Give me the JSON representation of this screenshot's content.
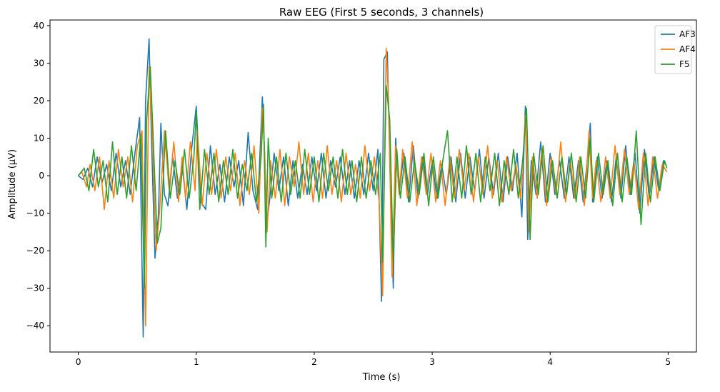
{
  "chart_data": {
    "type": "line",
    "title": "Raw EEG (First 5 seconds, 3 channels)",
    "xlabel": "Time (s)",
    "ylabel": "Amplitude (µV)",
    "xlim": [
      -0.24,
      5.24
    ],
    "ylim": [
      -47,
      41.5
    ],
    "xticks": [
      0,
      1,
      2,
      3,
      4,
      5
    ],
    "yticks": [
      -40,
      -30,
      -20,
      -10,
      0,
      10,
      20,
      30,
      40
    ],
    "grid": false,
    "legend_position": "top-right",
    "series": [
      {
        "name": "AF3",
        "color": "#1f77b4",
        "x": [
          0,
          0.04,
          0.08,
          0.12,
          0.16,
          0.2,
          0.24,
          0.28,
          0.32,
          0.36,
          0.4,
          0.44,
          0.48,
          0.52,
          0.55,
          0.57,
          0.6,
          0.62,
          0.65,
          0.68,
          0.7,
          0.73,
          0.76,
          0.8,
          0.84,
          0.88,
          0.92,
          0.96,
          1.0,
          1.04,
          1.08,
          1.12,
          1.16,
          1.2,
          1.24,
          1.28,
          1.32,
          1.36,
          1.4,
          1.44,
          1.48,
          1.52,
          1.56,
          1.58,
          1.6,
          1.62,
          1.66,
          1.7,
          1.74,
          1.78,
          1.82,
          1.86,
          1.9,
          1.94,
          1.98,
          2.02,
          2.06,
          2.1,
          2.14,
          2.18,
          2.22,
          2.26,
          2.3,
          2.34,
          2.38,
          2.42,
          2.46,
          2.5,
          2.54,
          2.57,
          2.59,
          2.62,
          2.64,
          2.67,
          2.69,
          2.72,
          2.76,
          2.8,
          2.84,
          2.88,
          2.92,
          2.96,
          3.0,
          3.04,
          3.08,
          3.12,
          3.16,
          3.2,
          3.24,
          3.28,
          3.32,
          3.36,
          3.4,
          3.44,
          3.48,
          3.52,
          3.56,
          3.6,
          3.64,
          3.68,
          3.72,
          3.76,
          3.79,
          3.81,
          3.84,
          3.88,
          3.92,
          3.96,
          4.0,
          4.04,
          4.08,
          4.12,
          4.16,
          4.2,
          4.24,
          4.28,
          4.32,
          4.34,
          4.36,
          4.4,
          4.44,
          4.48,
          4.52,
          4.56,
          4.6,
          4.64,
          4.68,
          4.72,
          4.76,
          4.8,
          4.84,
          4.88,
          4.92,
          4.96,
          4.98
        ],
        "y": [
          0,
          -1,
          2,
          -3,
          5,
          -2,
          3,
          -4,
          6,
          -3,
          4,
          -5,
          6,
          15.5,
          -43,
          20,
          36.5,
          10,
          -22,
          -10,
          14,
          -5,
          -8,
          5,
          -6,
          3,
          -9,
          7,
          18.5,
          -7,
          -9,
          8,
          -5,
          3,
          -7,
          5,
          -3,
          4,
          -8,
          11.5,
          -4,
          -9,
          21,
          5,
          -12,
          -7,
          6,
          -4,
          5,
          -8,
          4,
          -6,
          3,
          -5,
          5,
          -4,
          6,
          -6,
          4,
          -3,
          5,
          -5,
          4,
          -6,
          4,
          -5,
          6,
          -4,
          7,
          -33.5,
          31,
          33,
          5,
          -30,
          10,
          -5,
          6,
          -7,
          8,
          -6,
          5,
          -5,
          4,
          -6,
          3,
          -5,
          5,
          -7,
          6,
          -6,
          5,
          -4,
          7,
          -6,
          5,
          -5,
          6,
          -7,
          5,
          -4,
          6,
          -11,
          18.5,
          -17,
          4,
          -5,
          9,
          -7,
          6,
          -5,
          4,
          -6,
          5,
          -6,
          4,
          -7,
          6,
          14,
          -7,
          5,
          -6,
          4,
          -7,
          5,
          -6,
          8,
          -5,
          6,
          -10,
          7,
          -6,
          5,
          -4,
          4,
          3
        ]
      },
      {
        "name": "AF4",
        "color": "#ff7f0e",
        "x": [
          0,
          0.03,
          0.07,
          0.1,
          0.14,
          0.18,
          0.22,
          0.26,
          0.3,
          0.34,
          0.38,
          0.42,
          0.46,
          0.5,
          0.54,
          0.57,
          0.6,
          0.63,
          0.66,
          0.69,
          0.73,
          0.77,
          0.81,
          0.85,
          0.88,
          0.91,
          0.95,
          0.99,
          1.01,
          1.05,
          1.09,
          1.13,
          1.17,
          1.21,
          1.25,
          1.29,
          1.33,
          1.37,
          1.41,
          1.45,
          1.49,
          1.53,
          1.56,
          1.58,
          1.6,
          1.63,
          1.67,
          1.71,
          1.75,
          1.79,
          1.83,
          1.87,
          1.91,
          1.95,
          1.99,
          2.03,
          2.07,
          2.11,
          2.15,
          2.19,
          2.23,
          2.27,
          2.31,
          2.35,
          2.39,
          2.43,
          2.47,
          2.51,
          2.55,
          2.58,
          2.61,
          2.63,
          2.66,
          2.69,
          2.72,
          2.75,
          2.79,
          2.83,
          2.87,
          2.91,
          2.95,
          2.99,
          3.03,
          3.07,
          3.11,
          3.15,
          3.19,
          3.23,
          3.27,
          3.31,
          3.35,
          3.39,
          3.43,
          3.47,
          3.51,
          3.55,
          3.59,
          3.63,
          3.67,
          3.71,
          3.75,
          3.79,
          3.82,
          3.85,
          3.89,
          3.93,
          3.97,
          4.01,
          4.05,
          4.09,
          4.13,
          4.17,
          4.21,
          4.25,
          4.29,
          4.33,
          4.36,
          4.39,
          4.43,
          4.47,
          4.51,
          4.55,
          4.59,
          4.63,
          4.67,
          4.71,
          4.75,
          4.79,
          4.83,
          4.87,
          4.91,
          4.95,
          4.99
        ],
        "y": [
          0,
          1,
          -3,
          3,
          -4,
          5,
          -9,
          4,
          -6,
          7,
          -3,
          5,
          -7,
          8,
          12,
          -40,
          29,
          8,
          -20,
          -9,
          12,
          -4,
          9,
          -7,
          5,
          -6,
          9,
          -4,
          12,
          -8,
          6,
          -5,
          7,
          -6,
          5,
          -4,
          6,
          -8,
          4,
          -5,
          8,
          -10,
          18,
          6,
          -15,
          4,
          -6,
          7,
          -8,
          5,
          -3,
          9,
          -5,
          6,
          -7,
          4,
          -6,
          8,
          -5,
          4,
          -7,
          6,
          -5,
          3,
          -6,
          8,
          -4,
          5,
          -7,
          -32,
          34,
          20,
          -27,
          8,
          -5,
          7,
          -6,
          9,
          -8,
          5,
          -5,
          6,
          -7,
          4,
          -8,
          5,
          -6,
          7,
          -4,
          6,
          -7,
          5,
          -5,
          8,
          -6,
          4,
          -7,
          5,
          -4,
          3,
          -6,
          16,
          -15,
          5,
          -6,
          7,
          -8,
          5,
          -5,
          9,
          -7,
          4,
          -6,
          5,
          -8,
          12,
          -6,
          4,
          -7,
          5,
          -6,
          8,
          -5,
          7,
          -5,
          4,
          -9,
          6,
          -8,
          5,
          -6,
          3,
          1
        ]
      },
      {
        "name": "F5",
        "color": "#2ca02c",
        "x": [
          0,
          0.05,
          0.09,
          0.13,
          0.17,
          0.21,
          0.25,
          0.29,
          0.33,
          0.37,
          0.41,
          0.45,
          0.49,
          0.53,
          0.56,
          0.58,
          0.61,
          0.64,
          0.67,
          0.7,
          0.74,
          0.78,
          0.82,
          0.86,
          0.9,
          0.94,
          0.98,
          1.0,
          1.03,
          1.07,
          1.11,
          1.15,
          1.19,
          1.23,
          1.27,
          1.31,
          1.35,
          1.39,
          1.43,
          1.47,
          1.51,
          1.55,
          1.57,
          1.59,
          1.61,
          1.64,
          1.68,
          1.72,
          1.76,
          1.8,
          1.84,
          1.88,
          1.92,
          1.96,
          2.0,
          2.04,
          2.08,
          2.12,
          2.16,
          2.2,
          2.24,
          2.28,
          2.32,
          2.36,
          2.4,
          2.44,
          2.48,
          2.52,
          2.56,
          2.58,
          2.61,
          2.64,
          2.67,
          2.7,
          2.73,
          2.77,
          2.81,
          2.85,
          2.89,
          2.93,
          2.97,
          3.01,
          3.05,
          3.09,
          3.13,
          3.17,
          3.21,
          3.25,
          3.29,
          3.33,
          3.37,
          3.41,
          3.45,
          3.49,
          3.53,
          3.57,
          3.61,
          3.65,
          3.69,
          3.73,
          3.77,
          3.8,
          3.83,
          3.86,
          3.9,
          3.94,
          3.98,
          4.02,
          4.06,
          4.1,
          4.14,
          4.18,
          4.22,
          4.26,
          4.3,
          4.34,
          4.37,
          4.41,
          4.45,
          4.49,
          4.53,
          4.57,
          4.61,
          4.65,
          4.69,
          4.73,
          4.77,
          4.81,
          4.85,
          4.89,
          4.93,
          4.97,
          4.99
        ],
        "y": [
          0,
          2,
          -4,
          7,
          -3,
          4,
          -7,
          9,
          -5,
          5,
          -6,
          8,
          -4,
          11,
          -30,
          15,
          29,
          6,
          -18,
          -14,
          12,
          -6,
          4,
          -5,
          7,
          -6,
          5,
          17,
          -9,
          7,
          -5,
          6,
          -7,
          4,
          -5,
          7,
          -6,
          3,
          -4,
          6,
          -7,
          5,
          19,
          -19,
          10,
          -6,
          5,
          -7,
          6,
          -5,
          4,
          -6,
          7,
          -5,
          5,
          -7,
          6,
          -4,
          5,
          -6,
          7,
          -5,
          4,
          -7,
          5,
          -6,
          4,
          -5,
          6,
          -23,
          24,
          15,
          -23,
          7,
          -6,
          5,
          -7,
          4,
          -5,
          6,
          -8,
          5,
          -6,
          4,
          12,
          -7,
          5,
          -6,
          8,
          -5,
          6,
          -7,
          5,
          -4,
          6,
          -8,
          4,
          -5,
          7,
          -6,
          5,
          18,
          -17,
          6,
          -5,
          8,
          -7,
          4,
          -6,
          5,
          -5,
          6,
          -7,
          5,
          -6,
          10,
          -7,
          6,
          -5,
          4,
          -8,
          6,
          -7,
          5,
          -5,
          12,
          -13,
          6,
          -7,
          5,
          -4,
          4,
          2
        ]
      }
    ]
  }
}
